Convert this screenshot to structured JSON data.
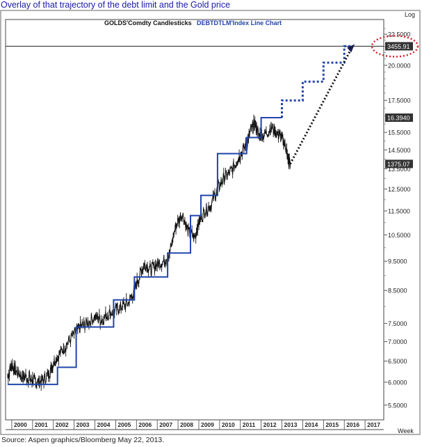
{
  "page": {
    "title": "Overlay of that trajectory of the debt limit and the Gold price",
    "source": "Source: Aspen graphics/Bloomberg May 22, 2013."
  },
  "chart_data": {
    "type": "line",
    "legend": [
      {
        "name": "GOLDS'Comdty Candlesticks",
        "color": "#111111"
      },
      {
        "name": "DEBTDTLM'Index Line Chart",
        "color": "#2244aa"
      }
    ],
    "yscale_label": "Log",
    "xscale_label": "Week",
    "x_ticks": [
      "2000",
      "2001",
      "2002",
      "2003",
      "2004",
      "2005",
      "2006",
      "2007",
      "2008",
      "2009",
      "2010",
      "2011",
      "2012",
      "2013",
      "2014",
      "2015",
      "2016",
      "2017"
    ],
    "y_ticks": [
      "5.5000",
      "6.0000",
      "6.5000",
      "7.0000",
      "7.5000",
      "8.5000",
      "9.5000",
      "10.5000",
      "11.5000",
      "12.5000",
      "13.5000",
      "14.5000",
      "15.5000",
      "17.5000",
      "20.0000",
      "22.5000"
    ],
    "ylim": [
      5.2,
      23.8
    ],
    "xlim": [
      1999.7,
      2017.9
    ],
    "value_labels": {
      "debt_limit_projection": "3455.91",
      "debt_limit_current": "16.3940",
      "gold_current": "1375.07"
    },
    "series": [
      {
        "name": "GOLDS'Comdty Candlesticks",
        "color": "#111111",
        "x": [
          1999.8,
          2000.0,
          2000.2,
          2000.5,
          2000.8,
          2001.0,
          2001.2,
          2001.5,
          2001.8,
          2002.0,
          2002.3,
          2002.6,
          2003.0,
          2003.3,
          2003.6,
          2004.0,
          2004.3,
          2004.6,
          2005.0,
          2005.3,
          2005.6,
          2005.9,
          2006.2,
          2006.4,
          2006.7,
          2007.0,
          2007.3,
          2007.6,
          2007.9,
          2008.2,
          2008.5,
          2008.8,
          2009.0,
          2009.3,
          2009.6,
          2009.9,
          2010.2,
          2010.5,
          2010.8,
          2011.0,
          2011.3,
          2011.5,
          2011.7,
          2011.9,
          2012.2,
          2012.5,
          2012.8,
          2013.0,
          2013.2,
          2013.3,
          2013.4
        ],
        "values": [
          6.15,
          6.4,
          6.25,
          6.15,
          6.1,
          6.05,
          6.0,
          6.05,
          6.2,
          6.45,
          6.7,
          6.9,
          7.2,
          7.4,
          7.5,
          7.7,
          7.6,
          7.75,
          7.9,
          8.0,
          8.1,
          8.5,
          9.1,
          9.4,
          9.2,
          9.4,
          9.5,
          9.8,
          10.9,
          11.4,
          10.6,
          10.4,
          11.0,
          11.5,
          11.8,
          12.5,
          13.0,
          13.3,
          13.8,
          14.3,
          14.8,
          15.6,
          16.0,
          15.3,
          15.4,
          15.8,
          15.4,
          15.2,
          14.6,
          13.9,
          13.75
        ]
      },
      {
        "name": "DEBTDTLM'Index Line Chart",
        "color": "#2244aa",
        "x": [
          1999.8,
          2002.2,
          2002.2,
          2003.1,
          2003.1,
          2004.9,
          2004.9,
          2005.9,
          2005.9,
          2007.5,
          2007.5,
          2008.6,
          2008.6,
          2009.1,
          2009.1,
          2009.9,
          2009.9,
          2011.3,
          2011.3,
          2012.0,
          2012.0,
          2013.0
        ],
        "values": [
          5.95,
          5.95,
          6.35,
          6.35,
          7.4,
          7.4,
          8.2,
          8.2,
          8.95,
          8.95,
          9.8,
          9.8,
          11.3,
          11.3,
          12.2,
          12.2,
          14.3,
          14.3,
          15.2,
          15.2,
          16.39,
          16.39
        ]
      },
      {
        "name": "debt limit projection",
        "color": "#2244aa",
        "x": [
          2013.0,
          2013.0,
          2014.0,
          2014.0,
          2015.0,
          2015.0,
          2016.0,
          2016.0,
          2016.4
        ],
        "values": [
          16.39,
          17.5,
          17.5,
          18.8,
          18.8,
          20.2,
          20.2,
          21.5,
          21.5
        ]
      },
      {
        "name": "gold price projection",
        "color": "#111111",
        "x": [
          2013.4,
          2016.4
        ],
        "values": [
          13.75,
          21.5
        ]
      }
    ]
  }
}
